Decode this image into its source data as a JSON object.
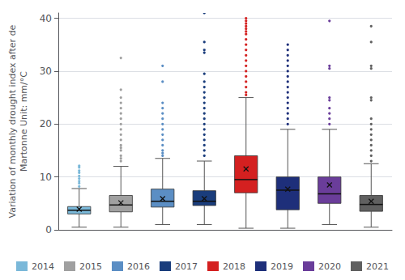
{
  "chart_data": {
    "type": "boxplot",
    "ylabel": "Variation of monthly drought index after de\nMartonne Unit: mm/°C",
    "series": [
      {
        "name": "2014",
        "color": "#7ab8d9",
        "q1": 3.0,
        "median": 3.7,
        "q3": 4.4,
        "mean": 3.9,
        "whislo": 0.5,
        "whishi": 7.8,
        "outliers": [
          8.2,
          8.8,
          9.2,
          9.7,
          10.2,
          10.8,
          11.2,
          11.8,
          12.1
        ]
      },
      {
        "name": "2015",
        "color": "#a0a0a0",
        "q1": 3.4,
        "median": 4.7,
        "q3": 6.5,
        "mean": 5.1,
        "whislo": 0.5,
        "whishi": 12.0,
        "outliers": [
          13.0,
          13.5,
          14.0,
          15.0,
          15.5,
          16.0,
          17.0,
          18.0,
          19.0,
          20.0,
          21.0,
          22.0,
          23.0,
          24.0,
          25.0,
          26.5,
          32.5
        ]
      },
      {
        "name": "2016",
        "color": "#5b8ec4",
        "q1": 4.3,
        "median": 5.4,
        "q3": 7.7,
        "mean": 5.9,
        "whislo": 1.0,
        "whishi": 13.5,
        "outliers": [
          14.0,
          14.5,
          15.0,
          16.0,
          17.0,
          18.0,
          19.0,
          20.0,
          21.0,
          22.0,
          23.0,
          24.0,
          28.0,
          31.0
        ]
      },
      {
        "name": "2017",
        "color": "#1a3d7c",
        "q1": 4.6,
        "median": 5.4,
        "q3": 7.4,
        "mean": 5.9,
        "whislo": 1.0,
        "whishi": 13.0,
        "outliers": [
          14.0,
          15.0,
          16.0,
          17.0,
          18.0,
          19.0,
          20.0,
          21.0,
          22.0,
          23.0,
          24.0,
          25.0,
          26.0,
          27.0,
          28.0,
          29.5,
          33.5,
          34.0,
          35.5,
          41.0
        ]
      },
      {
        "name": "2018",
        "color": "#d42020",
        "q1": 7.0,
        "median": 9.5,
        "q3": 14.0,
        "mean": 11.5,
        "whislo": 0.3,
        "whishi": 25.0,
        "outliers": [
          25.5,
          26.0,
          27.0,
          28.0,
          29.0,
          30.0,
          31.0,
          32.0,
          33.0,
          34.0,
          35.0,
          36.0,
          37.0,
          37.5,
          38.0,
          38.5,
          39.0,
          39.5,
          40.0
        ]
      },
      {
        "name": "2019",
        "color": "#1e2f7a",
        "q1": 3.8,
        "median": 7.5,
        "q3": 10.0,
        "mean": 7.7,
        "whislo": 0.3,
        "whishi": 19.0,
        "outliers": [
          20.0,
          21.0,
          22.0,
          23.0,
          24.0,
          25.0,
          26.0,
          27.0,
          28.0,
          29.0,
          30.0,
          31.0,
          32.0,
          33.0,
          34.0,
          35.0
        ]
      },
      {
        "name": "2020",
        "color": "#6a3d9a",
        "q1": 5.0,
        "median": 6.8,
        "q3": 10.0,
        "mean": 8.5,
        "whislo": 1.0,
        "whishi": 19.0,
        "outliers": [
          20.0,
          21.0,
          22.0,
          23.0,
          24.5,
          25.0,
          30.5,
          31.0,
          39.5
        ]
      },
      {
        "name": "2021",
        "color": "#606060",
        "q1": 3.5,
        "median": 4.8,
        "q3": 6.5,
        "mean": 5.4,
        "whislo": 0.5,
        "whishi": 12.5,
        "outliers": [
          13.0,
          14.0,
          15.0,
          16.0,
          17.0,
          18.0,
          19.0,
          20.0,
          21.0,
          24.5,
          25.0,
          30.5,
          31.0,
          35.5,
          38.5
        ]
      }
    ],
    "ylim": [
      0,
      41
    ],
    "yticks": [
      0,
      10,
      20,
      30,
      40
    ],
    "grid": true,
    "legend": "bottom",
    "tick_labels": "y"
  }
}
